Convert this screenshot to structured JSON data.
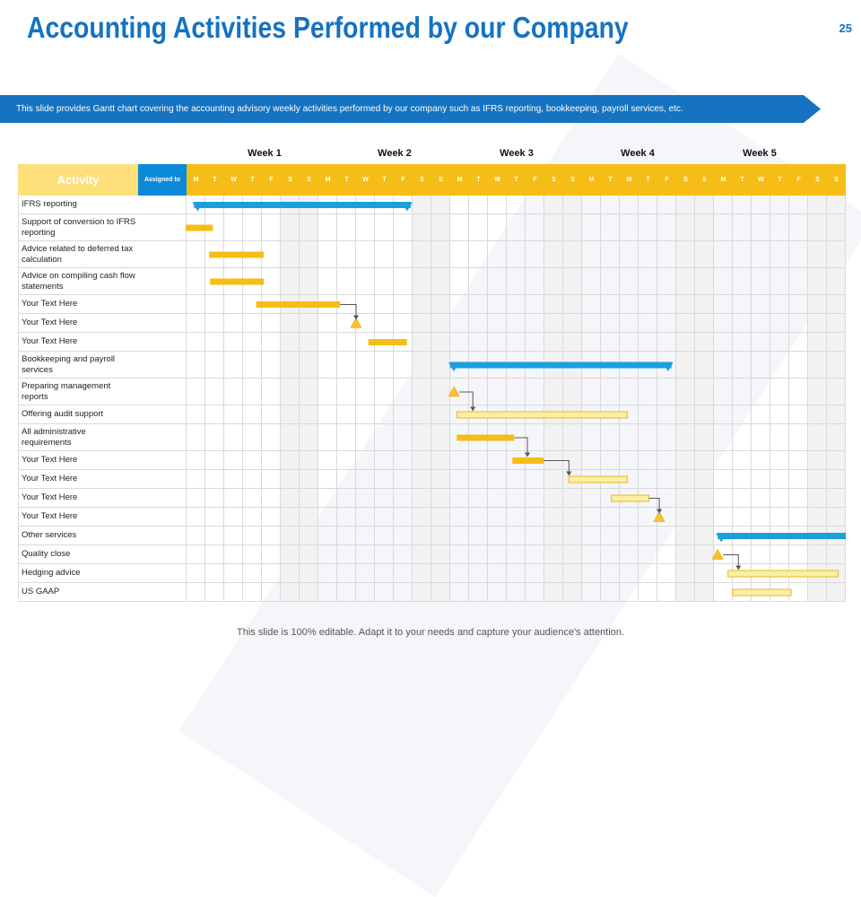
{
  "page": {
    "title": "Accounting Activities Performed by our Company",
    "page_number": "25",
    "banner_text": "This slide provides Gantt chart covering the accounting advisory weekly activities performed by our company such as IFRS  reporting, bookkeeping,  payroll services, etc.",
    "footer_text": "This slide is 100% editable. Adapt it to your needs and capture your audience's attention."
  },
  "gantt": {
    "header_activity": "Activity",
    "header_assigned": "Assigned to",
    "weeks": [
      "Week 1",
      "Week 2",
      "Week 3",
      "Week 4",
      "Week 5"
    ],
    "days": [
      "M",
      "T",
      "W",
      "T",
      "F",
      "S",
      "S",
      "M",
      "T",
      "W",
      "T",
      "F",
      "S",
      "S",
      "M",
      "T",
      "W",
      "T",
      "F",
      "S",
      "S",
      "M",
      "T",
      "W",
      "T",
      "F",
      "S",
      "S",
      "M",
      "T",
      "W",
      "T",
      "F",
      "S",
      "S"
    ],
    "activities": [
      "IFRS  reporting",
      "Support of conversion to IFRS  reporting",
      "Advice related to deferred tax calculation",
      "Advice on compiling cash flow statements",
      "Your Text Here",
      "Your Text Here",
      "Your Text Here",
      "Bookkeeping and payroll services",
      "Preparing management reports",
      "Offering audit support",
      "All administrative requirements",
      "Your Text Here",
      "Your Text Here",
      "Your Text Here",
      "Your Text Here",
      "Other services",
      "Quality close",
      "Hedging advice",
      "US GAAP"
    ],
    "colors": {
      "summary": "#1aa0dd",
      "task": "#f6bd16",
      "task_light": "#fdeea6",
      "milestone": "#fbc02d",
      "connector": "#555555"
    },
    "bars": [
      {
        "row": 0,
        "type": "summary",
        "start": 0.4,
        "end": 11.9
      },
      {
        "row": 1,
        "type": "task",
        "start": -0.05,
        "end": 1.4
      },
      {
        "row": 2,
        "type": "task",
        "start": 1.2,
        "end": 4.1
      },
      {
        "row": 3,
        "type": "task",
        "start": 1.25,
        "end": 4.1
      },
      {
        "row": 4,
        "type": "task",
        "start": 3.7,
        "end": 8.15
      },
      {
        "row": 5,
        "type": "milestone",
        "at": 9.0
      },
      {
        "row": 6,
        "type": "task",
        "start": 9.65,
        "end": 11.7
      },
      {
        "row": 7,
        "type": "summary",
        "start": 14.0,
        "end": 25.75
      },
      {
        "row": 8,
        "type": "milestone",
        "at": 14.2
      },
      {
        "row": 9,
        "type": "task_light",
        "start": 14.35,
        "end": 23.4
      },
      {
        "row": 10,
        "type": "task",
        "start": 14.35,
        "end": 17.4
      },
      {
        "row": 11,
        "type": "task",
        "start": 17.3,
        "end": 18.95
      },
      {
        "row": 12,
        "type": "task_light",
        "start": 20.3,
        "end": 23.4
      },
      {
        "row": 13,
        "type": "task_light",
        "start": 22.55,
        "end": 24.55
      },
      {
        "row": 14,
        "type": "milestone",
        "at": 25.1
      },
      {
        "row": 15,
        "type": "summary",
        "start": 28.2,
        "end": 35
      },
      {
        "row": 16,
        "type": "milestone",
        "at": 28.2
      },
      {
        "row": 17,
        "type": "task_light",
        "start": 28.75,
        "end": 34.6
      },
      {
        "row": 18,
        "type": "task_light",
        "start": 29.0,
        "end": 32.1
      }
    ],
    "links": [
      {
        "from_row": 4,
        "to_row": 5,
        "at": 9.0
      },
      {
        "from_row": 8,
        "to_row": 9,
        "at": 15.2
      },
      {
        "from_row": 10,
        "to_row": 11,
        "at": 18.1
      },
      {
        "from_row": 11,
        "to_row": 12,
        "at": 20.3
      },
      {
        "from_row": 13,
        "to_row": 14,
        "at": 25.1
      },
      {
        "from_row": 16,
        "to_row": 17,
        "at": 29.3
      }
    ]
  }
}
